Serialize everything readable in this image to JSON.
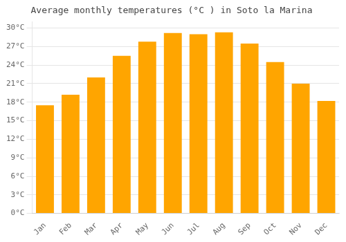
{
  "chart_data": {
    "type": "bar",
    "title": "Average monthly temperatures (°C ) in Soto la Marina",
    "categories": [
      "Jan",
      "Feb",
      "Mar",
      "Apr",
      "May",
      "Jun",
      "Jul",
      "Aug",
      "Sep",
      "Oct",
      "Nov",
      "Dec"
    ],
    "values": [
      17.5,
      19.2,
      22.0,
      25.5,
      27.8,
      29.2,
      29.0,
      29.3,
      27.5,
      24.5,
      21.0,
      18.2
    ],
    "color": "#FFA500",
    "ylim": [
      0,
      31
    ],
    "yticks": [
      {
        "value": 0,
        "label": "0°C"
      },
      {
        "value": 3,
        "label": "3°C"
      },
      {
        "value": 6,
        "label": "6°C"
      },
      {
        "value": 9,
        "label": "9°C"
      },
      {
        "value": 12,
        "label": "12°C"
      },
      {
        "value": 15,
        "label": "15°C"
      },
      {
        "value": 18,
        "label": "18°C"
      },
      {
        "value": 21,
        "label": "21°C"
      },
      {
        "value": 24,
        "label": "24°C"
      },
      {
        "value": 27,
        "label": "27°C"
      },
      {
        "value": 30,
        "label": "30°C"
      }
    ],
    "grid": true
  }
}
